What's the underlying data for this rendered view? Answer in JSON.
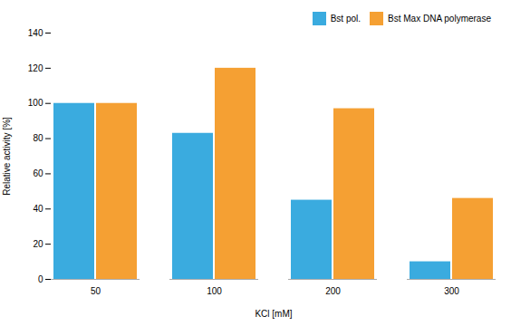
{
  "chart_data": {
    "type": "bar",
    "categories": [
      "50",
      "100",
      "200",
      "300"
    ],
    "series": [
      {
        "name": "Bst pol.",
        "color": "#3aabdf",
        "values": [
          100,
          83,
          45,
          10
        ]
      },
      {
        "name": "Bst Max DNA polymerase",
        "color": "#f5a033",
        "values": [
          100,
          120,
          97,
          46
        ]
      }
    ],
    "xlabel": "KCl [mM]",
    "ylabel": "Relative activity [%]",
    "ylim": [
      0,
      140
    ],
    "yticks": [
      0,
      20,
      40,
      60,
      80,
      100,
      120,
      140
    ],
    "grid": false,
    "legend": "upper right"
  }
}
